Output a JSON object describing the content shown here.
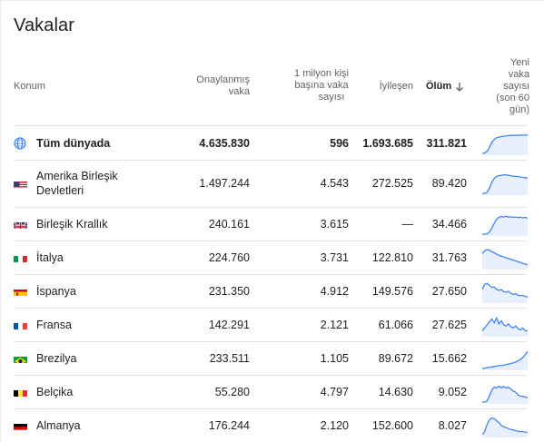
{
  "title": "Vakalar",
  "headers": {
    "location": "Konum",
    "confirmed": [
      "Onaylanmış",
      "vaka"
    ],
    "per_million": [
      "1 milyon kişi",
      "başına vaka",
      "sayısı"
    ],
    "recovered": "İyileşen",
    "deaths": "Ölüm",
    "new_cases": [
      "Yeni",
      "vaka",
      "sayısı",
      "(son 60",
      "gün)"
    ]
  },
  "colors": {
    "spark_line": "#4285f4",
    "spark_fill": "#e8f0fe",
    "rule": "#e0e0e0",
    "text": "#202124",
    "muted": "#5f6368"
  },
  "rows": [
    {
      "name": "Tüm dünyada",
      "flag": "globe-icon",
      "confirmed": "4.635.830",
      "per_million": "596",
      "recovered": "1.693.685",
      "deaths": "311.821",
      "bold": true,
      "trend": [
        0,
        2,
        10,
        30,
        55,
        70,
        78,
        82,
        84,
        86,
        88,
        89,
        90,
        90,
        91,
        90,
        92,
        91,
        92,
        92
      ]
    },
    {
      "name": "Amerika Birleşik Devletleri",
      "flag": "us-flag-icon",
      "confirmed": "1.497.244",
      "per_million": "4.543",
      "recovered": "272.525",
      "deaths": "89.420",
      "bold": false,
      "trend": [
        0,
        0,
        5,
        25,
        55,
        75,
        85,
        88,
        90,
        92,
        93,
        90,
        88,
        86,
        85,
        84,
        82,
        80,
        78,
        76
      ]
    },
    {
      "name": "Birleşik Krallık",
      "flag": "uk-flag-icon",
      "confirmed": "240.161",
      "per_million": "3.615",
      "recovered": "—",
      "deaths": "34.466",
      "bold": false,
      "trend": [
        0,
        0,
        2,
        10,
        30,
        55,
        75,
        85,
        88,
        86,
        90,
        85,
        87,
        84,
        86,
        83,
        85,
        82,
        84,
        80
      ]
    },
    {
      "name": "İtalya",
      "flag": "it-flag-icon",
      "confirmed": "224.760",
      "per_million": "3.731",
      "recovered": "122.810",
      "deaths": "31.763",
      "bold": false,
      "trend": [
        70,
        85,
        90,
        88,
        80,
        75,
        68,
        62,
        58,
        55,
        50,
        46,
        42,
        38,
        34,
        30,
        26,
        22,
        18,
        15
      ]
    },
    {
      "name": "İspanya",
      "flag": "es-flag-icon",
      "confirmed": "231.350",
      "per_million": "4.912",
      "recovered": "149.576",
      "deaths": "27.650",
      "bold": false,
      "trend": [
        60,
        85,
        90,
        80,
        70,
        72,
        60,
        55,
        58,
        48,
        45,
        50,
        40,
        35,
        38,
        30,
        28,
        30,
        25,
        22
      ]
    },
    {
      "name": "Fransa",
      "flag": "fr-flag-icon",
      "confirmed": "142.291",
      "per_million": "2.121",
      "recovered": "61.066",
      "deaths": "27.625",
      "bold": false,
      "trend": [
        20,
        35,
        50,
        65,
        80,
        60,
        85,
        55,
        70,
        50,
        45,
        55,
        40,
        35,
        45,
        30,
        25,
        35,
        20,
        22
      ]
    },
    {
      "name": "Brezilya",
      "flag": "br-flag-icon",
      "confirmed": "233.511",
      "per_million": "1.105",
      "recovered": "89.672",
      "deaths": "15.662",
      "bold": false,
      "trend": [
        0,
        2,
        4,
        6,
        8,
        10,
        12,
        14,
        15,
        17,
        20,
        22,
        25,
        28,
        32,
        38,
        45,
        55,
        70,
        85
      ]
    },
    {
      "name": "Belçika",
      "flag": "be-flag-icon",
      "confirmed": "55.280",
      "per_million": "4.797",
      "recovered": "14.630",
      "deaths": "9.052",
      "bold": false,
      "trend": [
        0,
        0,
        5,
        30,
        60,
        75,
        70,
        80,
        72,
        78,
        70,
        75,
        65,
        55,
        50,
        35,
        30,
        28,
        25,
        22
      ]
    },
    {
      "name": "Almanya",
      "flag": "de-flag-icon",
      "confirmed": "176.244",
      "per_million": "2.120",
      "recovered": "152.600",
      "deaths": "8.027",
      "bold": false,
      "trend": [
        5,
        20,
        55,
        80,
        88,
        85,
        75,
        65,
        50,
        45,
        40,
        35,
        30,
        28,
        25,
        22,
        20,
        20,
        18,
        16
      ]
    }
  ]
}
